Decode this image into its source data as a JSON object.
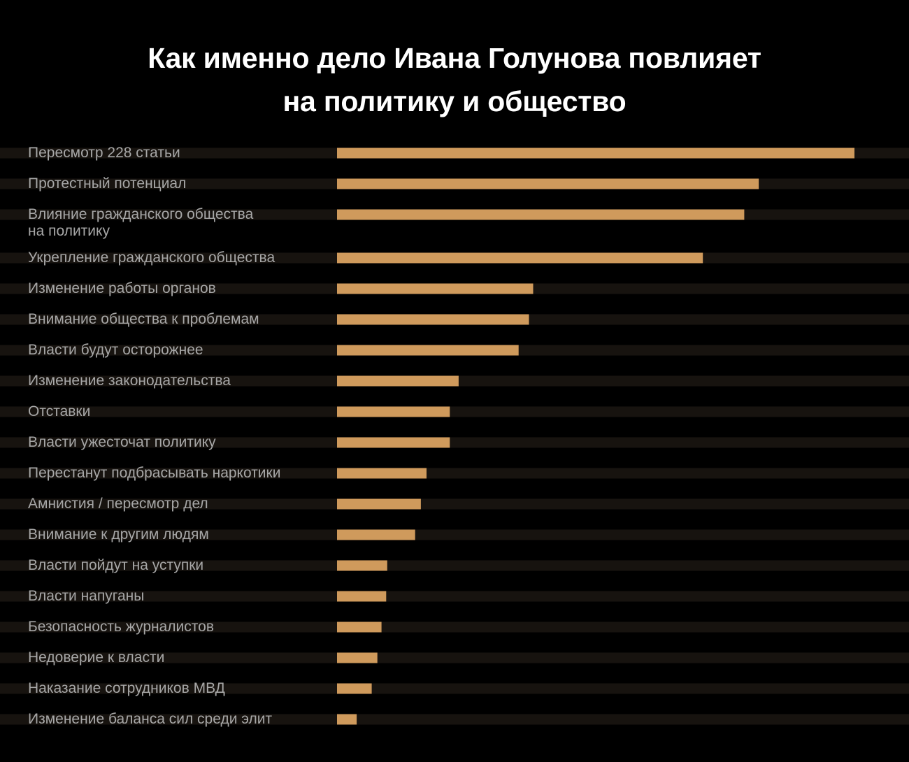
{
  "title": {
    "line1": "Как именно дело Ивана Голунова повлияет",
    "line2": "на политику и общество"
  },
  "colors": {
    "background": "#000000",
    "stripe": "#17130f",
    "bar": "#cf9a5c",
    "label": "#a7a7a7",
    "title": "#ffffff"
  },
  "chart_data": {
    "type": "bar",
    "orientation": "horizontal",
    "title": "Как именно дело Ивана Голунова повлияет на политику и общество",
    "xlabel": "",
    "ylabel": "",
    "xlim": [
      0,
      100
    ],
    "grid": false,
    "categories": [
      [
        "Пересмотр 228 статьи"
      ],
      [
        "Протестный потенциал"
      ],
      [
        "Влияние гражданского общества",
        "на политику"
      ],
      [
        "Укрепление гражданского общества"
      ],
      [
        "Изменение работы органов"
      ],
      [
        "Внимание общества к проблемам"
      ],
      [
        "Власти будут осторожнее"
      ],
      [
        "Изменение законодательства"
      ],
      [
        "Отставки"
      ],
      [
        "Власти ужесточат политику"
      ],
      [
        "Перестанут подбрасывать наркотики"
      ],
      [
        "Амнистия / пересмотр дел"
      ],
      [
        "Внимание к другим людям"
      ],
      [
        "Власти пойдут на уступки"
      ],
      [
        "Власти напуганы"
      ],
      [
        "Безопасность журналистов"
      ],
      [
        "Недоверие к власти"
      ],
      [
        "Наказание сотрудников МВД"
      ],
      [
        "Изменение баланса сил среди элит"
      ]
    ],
    "values": [
      100,
      81.5,
      78.7,
      70.7,
      37.9,
      37.1,
      35.1,
      23.5,
      21.8,
      21.8,
      17.3,
      16.2,
      15.1,
      9.7,
      9.5,
      8.6,
      7.8,
      6.7,
      3.8
    ]
  }
}
